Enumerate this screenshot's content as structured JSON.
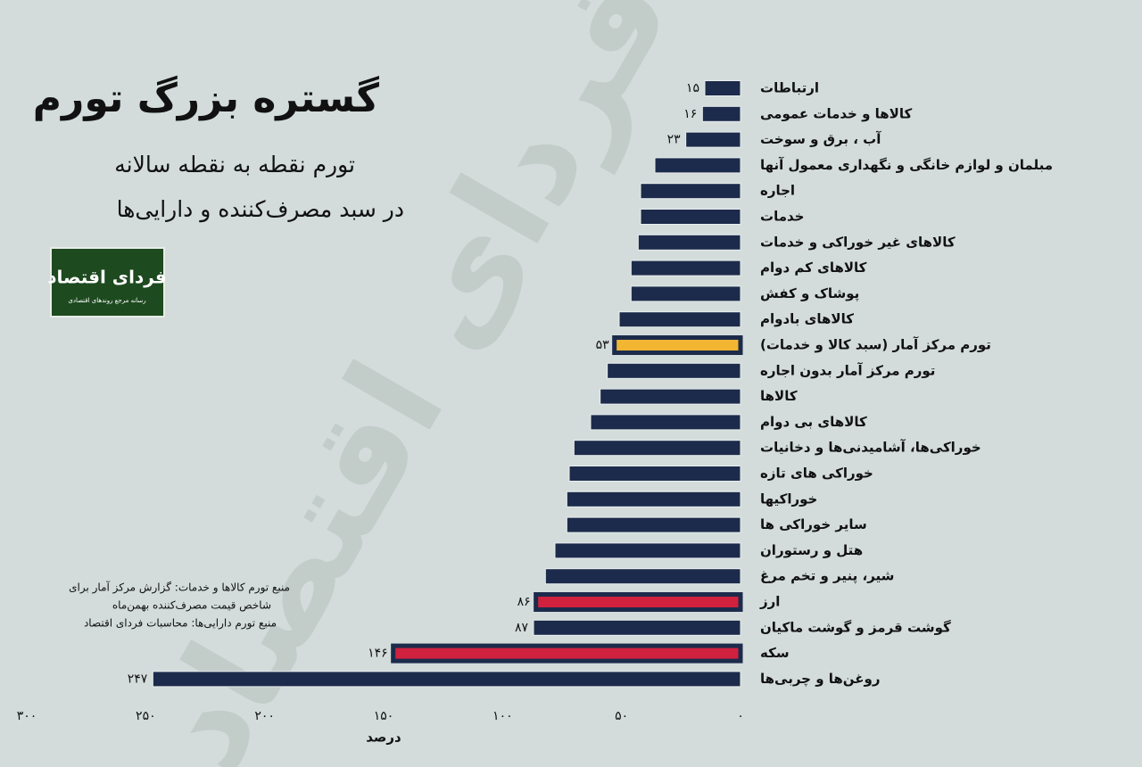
{
  "chart_data": {
    "type": "barh",
    "title": "گستره بزرگ تورم",
    "subtitle": [
      "تورم نقطه به نقطه سالانه",
      "در سبد مصرف‌کننده و دارایی‌ها"
    ],
    "x_label": "درصد",
    "categories": [
      "ارتباطات",
      "کالاها و خدمات عمومی",
      "آب ، برق و سوخت",
      "مبلمان و لوازم خانگی و نگهداری معمول آنها",
      "اجاره",
      "خدمات",
      "کالاهای غیر خوراکی و خدمات",
      "کالاهای کم دوام",
      "پوشاک و کفش",
      "کالاهای بادوام",
      "تورم مرکز آمار (سبد کالا و خدمات)",
      "تورم مرکز آمار بدون اجاره",
      "کالاها",
      "کالاهای بی دوام",
      "خوراکی‌ها، آشامیدنی‌ها و دخانیات",
      "خوراکی های تازه",
      "خوراکیها",
      "سایر خوراکی ها",
      "هتل و رستوران",
      "شیر، پنیر و تخم مرغ",
      "ارز",
      "گوشت قرمز و گوشت ماکیان",
      "سکه",
      "روغن‌ها و چربی‌ها"
    ],
    "values": [
      15,
      16,
      23,
      36,
      42,
      42,
      43,
      46,
      46,
      51,
      53,
      56,
      59,
      63,
      70,
      72,
      73,
      73,
      78,
      82,
      86,
      87,
      146,
      247
    ],
    "value_labels": [
      "۱۵",
      "۱۶",
      "۲۳",
      null,
      null,
      null,
      null,
      null,
      null,
      null,
      "۵۳",
      null,
      null,
      null,
      null,
      null,
      null,
      null,
      null,
      null,
      "۸۶",
      "۸۷",
      "۱۴۶",
      "۲۴۷"
    ],
    "color": "#1c2b4b",
    "colors": [
      "#1c2b4b",
      "#1c2b4b",
      "#1c2b4b",
      "#1c2b4b",
      "#1c2b4b",
      "#1c2b4b",
      "#1c2b4b",
      "#1c2b4b",
      "#1c2b4b",
      "#1c2b4b",
      "#f2b632",
      "#1c2b4b",
      "#1c2b4b",
      "#1c2b4b",
      "#1c2b4b",
      "#1c2b4b",
      "#1c2b4b",
      "#1c2b4b",
      "#1c2b4b",
      "#1c2b4b",
      "#d0213f",
      "#1c2b4b",
      "#d0213f",
      "#1c2b4b"
    ],
    "xlim": [
      0,
      300
    ],
    "xticks": [
      {
        "value": 0,
        "label": "۰"
      },
      {
        "value": 50,
        "label": "۵۰"
      },
      {
        "value": 100,
        "label": "۱۰۰"
      },
      {
        "value": 150,
        "label": "۱۵۰"
      },
      {
        "value": 200,
        "label": "۲۰۰"
      },
      {
        "value": 250,
        "label": "۲۵۰"
      },
      {
        "value": 300,
        "label": "۳۰۰"
      }
    ],
    "sources": [
      "منبع تورم کالاها و خدمات: گزارش مرکز آمار برای",
      "شاخص قیمت مصرف‌کننده بهمن‌ماه",
      "منبع تورم دارایی‌ها: محاسبات فردای اقتصاد"
    ],
    "logo": {
      "name": "فردای اقتصاد",
      "tagline": "رسانه مرجع روندهای اقتصادی"
    }
  }
}
